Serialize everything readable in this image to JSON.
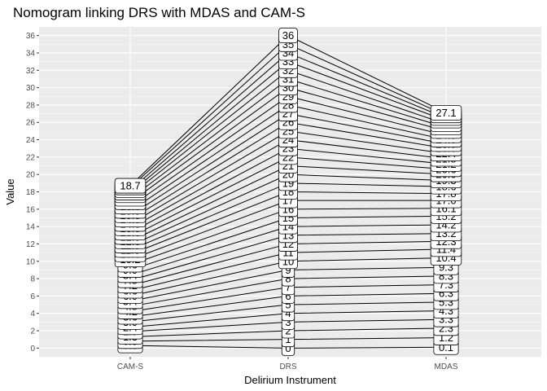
{
  "chart_data": {
    "type": "line",
    "title": "Nomogram linking DRS with MDAS and CAM-S",
    "xlabel": "Delirium Instrument",
    "ylabel": "Value",
    "categories": [
      "CAM-S",
      "DRS",
      "MDAS"
    ],
    "ylim": [
      -1,
      37
    ],
    "yticks": [
      0,
      2,
      4,
      6,
      8,
      10,
      12,
      14,
      16,
      18,
      20,
      22,
      24,
      26,
      28,
      30,
      32,
      34,
      36
    ],
    "grid": true,
    "drs": [
      0,
      1,
      2,
      3,
      4,
      5,
      6,
      7,
      8,
      9,
      10,
      11,
      12,
      13,
      14,
      15,
      16,
      17,
      18,
      19,
      20,
      21,
      22,
      23,
      24,
      25,
      26,
      27,
      28,
      29,
      30,
      31,
      32,
      33,
      34,
      35,
      36
    ],
    "cams": [
      0.3,
      0.8,
      1.3,
      1.9,
      2.4,
      3.0,
      3.6,
      4.2,
      4.8,
      5.4,
      6.0,
      6.6,
      7.2,
      7.8,
      8.4,
      9.0,
      9.6,
      10.2,
      10.8,
      11.3,
      11.8,
      12.3,
      12.8,
      13.3,
      13.8,
      14.3,
      14.8,
      15.3,
      15.8,
      16.3,
      16.8,
      17.2,
      17.6,
      17.9,
      18.2,
      18.5,
      18.7
    ],
    "mdas": [
      0.1,
      1.2,
      2.3,
      3.3,
      4.3,
      5.3,
      6.3,
      7.3,
      8.3,
      9.3,
      10.4,
      11.4,
      12.3,
      13.2,
      14.2,
      15.2,
      16.1,
      17.0,
      17.8,
      18.6,
      19.3,
      20.0,
      20.6,
      21.2,
      21.8,
      22.4,
      23.0,
      23.5,
      24.0,
      24.5,
      25.0,
      25.4,
      25.8,
      26.2,
      26.5,
      26.8,
      27.1
    ],
    "top_labels": {
      "cams": "18.7",
      "drs": "36",
      "mdas": "27.1"
    },
    "mid_labels": {
      "mdas_16": "16.1",
      "mdas_15": "15.2",
      "mdas_14": "14.2",
      "mdas_13": "13.2",
      "mdas_12": "12.3"
    }
  }
}
